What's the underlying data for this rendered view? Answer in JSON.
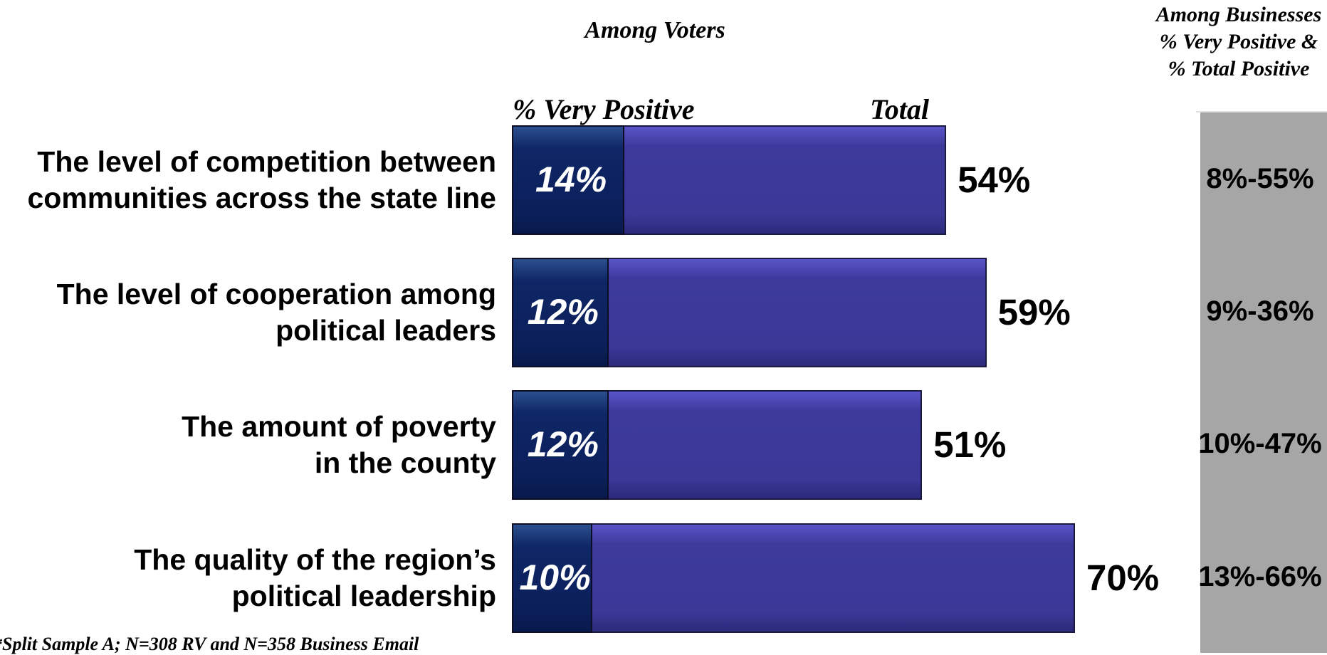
{
  "headings": {
    "voters": "Among Voters",
    "businesses_line1": "Among Businesses",
    "businesses_line2": "% Very Positive &",
    "businesses_line3": "% Total Positive",
    "col_very_positive": "% Very Positive",
    "col_total": "Total"
  },
  "footnote": "*Split Sample A; N=308 RV and N=358 Business Email",
  "colors": {
    "total_bar": "#3b3898",
    "very_positive_bar": "#0b1f5a",
    "business_panel": "#a6a6a6"
  },
  "chart_data": {
    "type": "bar",
    "orientation": "horizontal",
    "title": "Among Voters",
    "categories": [
      [
        "The level of competition between",
        "communities across the state line"
      ],
      [
        "The level of cooperation among",
        "political leaders"
      ],
      [
        "The amount of poverty",
        "in the county"
      ],
      [
        "The quality of the region’s",
        "political leadership"
      ]
    ],
    "series": [
      {
        "name": "% Very Positive",
        "values": [
          14,
          12,
          12,
          10
        ],
        "labels": [
          "14%",
          "12%",
          "12%",
          "10%"
        ]
      },
      {
        "name": "Total",
        "values": [
          54,
          59,
          51,
          70
        ],
        "labels": [
          "54%",
          "59%",
          "51%",
          "70%"
        ]
      }
    ],
    "businesses": {
      "title": [
        "Among Businesses",
        "% Very Positive &",
        "% Total Positive"
      ],
      "labels": [
        "8%-55%",
        "9%-36%",
        "10%-47%",
        "13%-66%"
      ],
      "very_positive": [
        8,
        9,
        10,
        13
      ],
      "total_positive": [
        55,
        36,
        47,
        66
      ]
    },
    "grid": false,
    "legend": "column-headers-above"
  }
}
